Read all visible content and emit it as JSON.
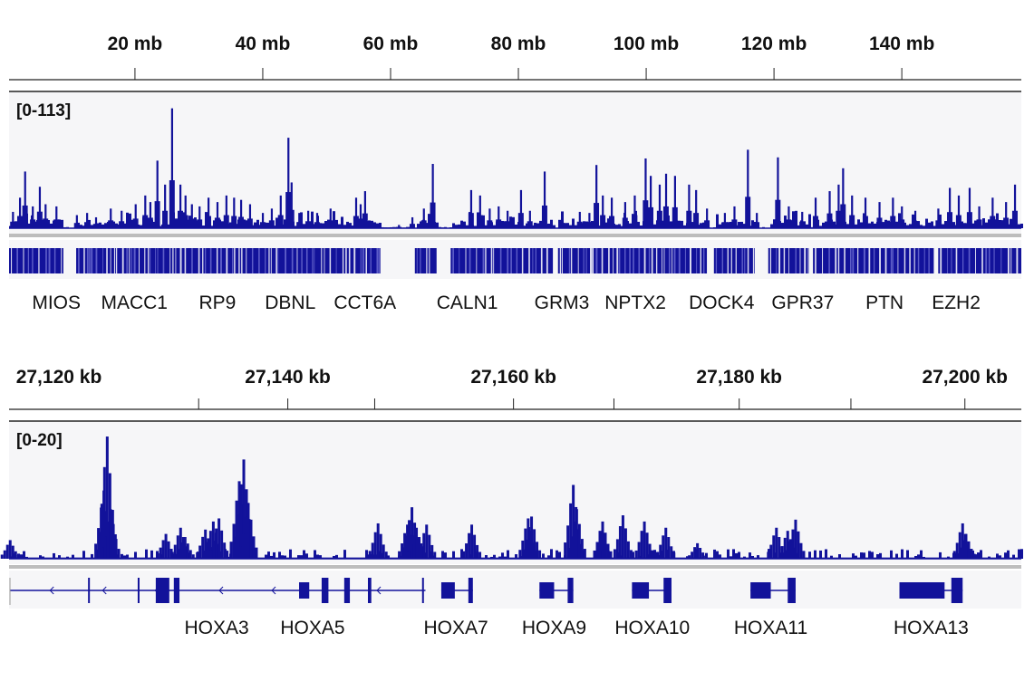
{
  "colors": {
    "signal": "#12129a",
    "panel_bg": "#f6f6f8",
    "separator": "#bdbdbd",
    "axis": "#222222"
  },
  "chart_data": [
    {
      "type": "bar",
      "x_unit": "mb",
      "xlim": [
        0.3,
        158.7
      ],
      "ylim": [
        0,
        113
      ],
      "range_label": "[0-113]",
      "ticks": [
        {
          "pos": 20,
          "label": "20 mb"
        },
        {
          "pos": 40,
          "label": "40 mb"
        },
        {
          "pos": 60,
          "label": "60 mb"
        },
        {
          "pos": 80,
          "label": "80 mb"
        },
        {
          "pos": 100,
          "label": "100 mb"
        },
        {
          "pos": 120,
          "label": "120 mb"
        },
        {
          "pos": 140,
          "label": "140 mb"
        }
      ],
      "peaks": [
        [
          0.9,
          15
        ],
        [
          2.0,
          28
        ],
        [
          2.8,
          52
        ],
        [
          4.0,
          20
        ],
        [
          5.1,
          38
        ],
        [
          6.0,
          22
        ],
        [
          7.7,
          20
        ],
        [
          10.9,
          12
        ],
        [
          12.5,
          14
        ],
        [
          13.9,
          10
        ],
        [
          16.2,
          18
        ],
        [
          17.9,
          16
        ],
        [
          20.1,
          22
        ],
        [
          21.6,
          30
        ],
        [
          22.4,
          24
        ],
        [
          23.5,
          62
        ],
        [
          24.7,
          40
        ],
        [
          25.8,
          110
        ],
        [
          27.1,
          40
        ],
        [
          27.9,
          30
        ],
        [
          28.9,
          22
        ],
        [
          30.1,
          20
        ],
        [
          31.5,
          28
        ],
        [
          32.9,
          24
        ],
        [
          34.3,
          30
        ],
        [
          35.5,
          28
        ],
        [
          36.6,
          26
        ],
        [
          38.0,
          22
        ],
        [
          40.0,
          14
        ],
        [
          41.4,
          18
        ],
        [
          42.8,
          30
        ],
        [
          44.0,
          83
        ],
        [
          44.5,
          42
        ],
        [
          45.7,
          14
        ],
        [
          47.1,
          16
        ],
        [
          48.5,
          14
        ],
        [
          50.6,
          18
        ],
        [
          54.6,
          28
        ],
        [
          55.3,
          22
        ],
        [
          56.0,
          34
        ],
        [
          58.4,
          2
        ],
        [
          61.3,
          3
        ],
        [
          63.4,
          10
        ],
        [
          65.2,
          18
        ],
        [
          66.6,
          59
        ],
        [
          72.6,
          35
        ],
        [
          74.0,
          30
        ],
        [
          75.5,
          18
        ],
        [
          76.9,
          20
        ],
        [
          78.3,
          16
        ],
        [
          80.4,
          35
        ],
        [
          81.8,
          16
        ],
        [
          84.1,
          52
        ],
        [
          86.8,
          12
        ],
        [
          89.6,
          15
        ],
        [
          91.1,
          14
        ],
        [
          92.2,
          58
        ],
        [
          93.2,
          30
        ],
        [
          94.6,
          28
        ],
        [
          96.7,
          24
        ],
        [
          98.2,
          30
        ],
        [
          99.9,
          64
        ],
        [
          100.7,
          48
        ],
        [
          102.1,
          40
        ],
        [
          103.1,
          50
        ],
        [
          104.5,
          48
        ],
        [
          106.7,
          40
        ],
        [
          107.8,
          35
        ],
        [
          109.5,
          18
        ],
        [
          112.3,
          14
        ],
        [
          113.8,
          20
        ],
        [
          115.9,
          72
        ],
        [
          117.3,
          14
        ],
        [
          120.6,
          65
        ],
        [
          122.3,
          20
        ],
        [
          124.4,
          15
        ],
        [
          126.5,
          28
        ],
        [
          128.7,
          34
        ],
        [
          130.1,
          40
        ],
        [
          130.8,
          55
        ],
        [
          132.2,
          30
        ],
        [
          134.3,
          28
        ],
        [
          136.5,
          24
        ],
        [
          138.6,
          28
        ],
        [
          140.0,
          20
        ],
        [
          142.1,
          16
        ],
        [
          145.7,
          18
        ],
        [
          147.5,
          37
        ],
        [
          148.9,
          30
        ],
        [
          150.6,
          37
        ],
        [
          152.1,
          20
        ],
        [
          154.2,
          28
        ],
        [
          156.3,
          24
        ],
        [
          157.7,
          40
        ]
      ],
      "gene_regions": [
        [
          0.3,
          8.8
        ],
        [
          10.8,
          58.4
        ],
        [
          63.8,
          67.2
        ],
        [
          69.4,
          85.4
        ],
        [
          86.2,
          109.5
        ],
        [
          110.6,
          117.0
        ],
        [
          119.1,
          125.5
        ],
        [
          126.1,
          145.0
        ],
        [
          145.7,
          158.7
        ]
      ],
      "gene_labels": [
        {
          "pos": 7.7,
          "label": "MIOS"
        },
        {
          "pos": 19.9,
          "label": "MACC1"
        },
        {
          "pos": 32.9,
          "label": "RP9"
        },
        {
          "pos": 44.3,
          "label": "DBNL"
        },
        {
          "pos": 56.0,
          "label": "CCT6A"
        },
        {
          "pos": 72.0,
          "label": "CALN1"
        },
        {
          "pos": 86.8,
          "label": "GRM3"
        },
        {
          "pos": 98.3,
          "label": "NPTX2"
        },
        {
          "pos": 111.8,
          "label": "DOCK4"
        },
        {
          "pos": 124.5,
          "label": "GPR37"
        },
        {
          "pos": 137.3,
          "label": "PTN"
        },
        {
          "pos": 148.5,
          "label": "EZH2"
        }
      ]
    },
    {
      "type": "bar",
      "x_unit": "kb",
      "xlim": [
        27115.3,
        27205.0
      ],
      "ylim": [
        0,
        20
      ],
      "range_label": "[0-20]",
      "ticks": [
        {
          "pos": 27120,
          "label": "27,120 kb"
        },
        {
          "pos": 27140,
          "label": "27,140 kb"
        },
        {
          "pos": 27160,
          "label": "27,160 kb"
        },
        {
          "pos": 27180,
          "label": "27,180 kb"
        },
        {
          "pos": 27200,
          "label": "27,200 kb"
        }
      ],
      "minor_ticks": [
        27132.1,
        27147.7,
        27168.9,
        27189.9
      ],
      "peaks": [
        [
          27115.4,
          3
        ],
        [
          27123.7,
          11
        ],
        [
          27124.0,
          19.7
        ],
        [
          27124.3,
          8
        ],
        [
          27129.2,
          4
        ],
        [
          27130.5,
          5
        ],
        [
          27130.9,
          3.5
        ],
        [
          27132.7,
          4.7
        ],
        [
          27133.4,
          6
        ],
        [
          27133.9,
          6.5
        ],
        [
          27135.7,
          12.5
        ],
        [
          27136.1,
          16
        ],
        [
          27136.5,
          9
        ],
        [
          27148.0,
          5.7
        ],
        [
          27150.6,
          5.5
        ],
        [
          27151.0,
          8.3
        ],
        [
          27151.4,
          5
        ],
        [
          27152.3,
          5.5
        ],
        [
          27156.3,
          5.5
        ],
        [
          27161.3,
          6.5
        ],
        [
          27161.6,
          6.8
        ],
        [
          27165.3,
          11.9
        ],
        [
          27165.6,
          8
        ],
        [
          27167.9,
          6
        ],
        [
          27169.7,
          7
        ],
        [
          27171.6,
          6
        ],
        [
          27173.5,
          5
        ],
        [
          27176.3,
          2.5
        ],
        [
          27183.3,
          5
        ],
        [
          27184.3,
          4.5
        ],
        [
          27185.0,
          6.3
        ],
        [
          27199.8,
          5.7
        ],
        [
          27200.1,
          4
        ]
      ],
      "genes": [
        {
          "label": "HOXA3",
          "label_pos": 27133.7,
          "start": 27115.4,
          "end": 27130.4,
          "strand": "-",
          "exons": [
            [
              27122.3,
              27122.45
            ],
            [
              27126.7,
              27126.8
            ],
            [
              27128.3,
              27129.5
            ],
            [
              27129.9,
              27130.4
            ]
          ]
        },
        {
          "label": "HOXA5",
          "label_pos": 27142.2,
          "start": 27130.4,
          "end": 27152.2,
          "strand": "-",
          "exons": [
            [
              27141.0,
              27141.9
            ],
            [
              27143.0,
              27143.6
            ],
            [
              27145.0,
              27145.5
            ],
            [
              27147.1,
              27147.4
            ],
            [
              27151.9,
              27152.05
            ]
          ]
        },
        {
          "label": "HOXA7",
          "label_pos": 27154.9,
          "start": 27153.6,
          "end": 27156.4,
          "strand": "-",
          "exons": [
            [
              27153.6,
              27154.8
            ],
            [
              27156.0,
              27156.4
            ]
          ]
        },
        {
          "label": "HOXA9",
          "label_pos": 27163.6,
          "start": 27162.3,
          "end": 27165.3,
          "strand": "-",
          "exons": [
            [
              27162.3,
              27163.6
            ],
            [
              27164.8,
              27165.3
            ]
          ]
        },
        {
          "label": "HOXA10",
          "label_pos": 27172.3,
          "start": 27170.5,
          "end": 27174.0,
          "strand": "-",
          "exons": [
            [
              27170.5,
              27172.0
            ],
            [
              27173.3,
              27174.0
            ]
          ]
        },
        {
          "label": "HOXA11",
          "label_pos": 27182.8,
          "start": 27181.0,
          "end": 27185.0,
          "strand": "-",
          "exons": [
            [
              27181.0,
              27182.8
            ],
            [
              27184.3,
              27185.0
            ]
          ]
        },
        {
          "label": "HOXA13",
          "label_pos": 27197.0,
          "start": 27194.2,
          "end": 27199.8,
          "strand": "-",
          "exons": [
            [
              27194.2,
              27198.2
            ],
            [
              27198.8,
              27199.8
            ]
          ]
        }
      ]
    }
  ]
}
